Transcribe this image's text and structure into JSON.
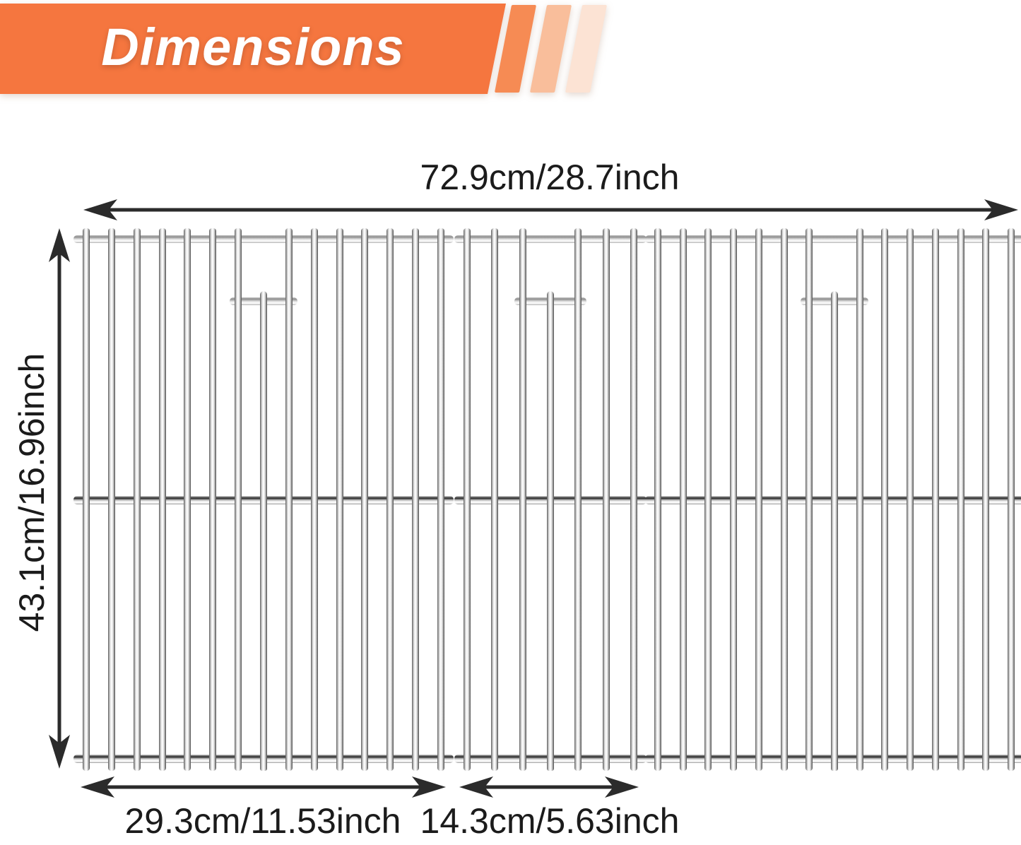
{
  "header": {
    "title": "Dimensions"
  },
  "colors": {
    "banner_orange": "#F5763F",
    "stripe_1": "#F68B54",
    "stripe_2": "#F9BE9B",
    "stripe_3": "#FCE3D4",
    "arrow": "#2B2B2B",
    "label_text": "#1B1B1B",
    "steel_light": "#FFFFFF",
    "steel_dark": "#4E4E4E"
  },
  "dimensions": {
    "total_width": "72.9cm/28.7inch",
    "grate_height": "43.1cm/16.96inch",
    "large_grate_width": "29.3cm/11.53inch",
    "small_grate_width": "14.3cm/5.63inch"
  },
  "diagram": {
    "grate_count": 3,
    "panels": [
      {
        "id": "left-grate",
        "rods": 15,
        "has_lifter_bar": true
      },
      {
        "id": "center-grate",
        "rods": 7,
        "has_lifter_bar": true
      },
      {
        "id": "right-grate",
        "rods": 15,
        "has_lifter_bar": true
      }
    ]
  }
}
